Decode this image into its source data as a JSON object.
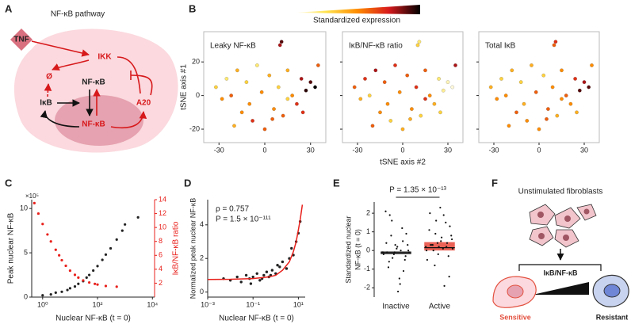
{
  "figure": {
    "panel_labels": [
      "A",
      "B",
      "C",
      "D",
      "E",
      "F"
    ]
  },
  "pathway_diagram": {
    "title": "NF-κB pathway",
    "nodes": [
      {
        "label": "TNF"
      },
      {
        "label": "IKK"
      },
      {
        "label": "Ø"
      },
      {
        "label": "NF-κB"
      },
      {
        "label": "IκB"
      },
      {
        "label": "A20"
      },
      {
        "label": "NF-κB"
      }
    ]
  },
  "chart_data": [
    {
      "type": "tsne",
      "colorbar_label": "Standardized expression",
      "colormap": [
        "#ffffff",
        "#ffe34d",
        "#ff8c00",
        "#d7191c",
        "#000000"
      ],
      "xlabel": "tSNE axis #2",
      "ylabel": "tSNE axis #1",
      "xlim": [
        -40,
        40
      ],
      "ylim": [
        -28,
        38
      ],
      "xticks": [
        -30,
        0,
        30
      ],
      "yticks": [
        -20,
        0,
        20
      ],
      "x": [
        -32,
        -28,
        -25,
        -22,
        -18,
        -15,
        -12,
        -8,
        -5,
        -2,
        0,
        3,
        6,
        9,
        12,
        15,
        18,
        21,
        24,
        27,
        30,
        33,
        -20,
        -10,
        5,
        15,
        25,
        10,
        11,
        35
      ],
      "y": [
        5,
        -2,
        10,
        0,
        15,
        -10,
        8,
        -15,
        18,
        2,
        -20,
        12,
        -8,
        5,
        -12,
        15,
        0,
        -5,
        10,
        3,
        8,
        5,
        -18,
        -5,
        -14,
        -2,
        -10,
        30,
        32,
        18
      ],
      "panels": [
        {
          "title": "Leaky NF-κB",
          "values": [
            0.3,
            0.5,
            0.2,
            0.6,
            0.4,
            0.5,
            0.3,
            0.7,
            0.2,
            0.5,
            0.6,
            0.4,
            0.5,
            0.3,
            0.6,
            0.4,
            0.5,
            0.7,
            0.8,
            0.95,
            0.9,
            1,
            0.4,
            0.5,
            0.6,
            0.3,
            0.7,
            0.8,
            0.9,
            0.6
          ]
        },
        {
          "title": "IκB/NF-κB ratio",
          "values": [
            0.6,
            0.4,
            0.7,
            0.3,
            0.8,
            0.5,
            0.6,
            0.3,
            0.7,
            0.5,
            0.4,
            0.6,
            0.5,
            0.7,
            0.3,
            0.6,
            0.5,
            0.4,
            0.2,
            0.15,
            0.1,
            0.05,
            0.6,
            0.5,
            0.4,
            0.7,
            0.3,
            0.3,
            0.2,
            0.8
          ]
        },
        {
          "title": "Total IκB",
          "values": [
            0.4,
            0.5,
            0.3,
            0.5,
            0.4,
            0.6,
            0.3,
            0.5,
            0.4,
            0.6,
            0.5,
            0.3,
            0.6,
            0.5,
            0.4,
            0.5,
            0.6,
            0.5,
            0.7,
            0.9,
            0.8,
            0.9,
            0.5,
            0.4,
            0.6,
            0.5,
            0.4,
            0.6,
            0.7,
            0.5
          ]
        }
      ]
    },
    {
      "type": "dual_scatter",
      "xlabel": "Nuclear NF-κB (t = 0)",
      "ylabel": "Peak nuclear NF-κB",
      "y_multiplier": "×10⁵",
      "y2label": "IκB/NF-κB ratio",
      "logx": true,
      "xlim": [
        0.4,
        12000
      ],
      "xticks": [
        {
          "value": 1,
          "label": "10⁰"
        },
        {
          "value": 100,
          "label": "10²"
        },
        {
          "value": 10000,
          "label": "10⁴"
        }
      ],
      "ylim": [
        0,
        11
      ],
      "yticks": [
        0,
        5,
        10
      ],
      "y2lim": [
        0,
        14
      ],
      "y2ticks": [
        2,
        4,
        6,
        8,
        10,
        12,
        14
      ],
      "series": [
        {
          "color": "#222222",
          "x": [
            1,
            2,
            3,
            5,
            8,
            10,
            15,
            20,
            30,
            40,
            50,
            70,
            100,
            150,
            200,
            300,
            500,
            800,
            1000,
            3000
          ],
          "values": [
            0.2,
            0.3,
            0.5,
            0.6,
            0.8,
            1.0,
            1.2,
            1.5,
            1.8,
            2.2,
            2.5,
            3.0,
            3.5,
            4.2,
            4.8,
            5.5,
            6.5,
            7.5,
            8.2,
            9
          ]
        },
        {
          "color": "#e8211c",
          "axis": "y2",
          "x": [
            0.5,
            0.7,
            1,
            1.5,
            2,
            3,
            4,
            5,
            7,
            10,
            15,
            20,
            30,
            50,
            80,
            100,
            200,
            500
          ],
          "values": [
            13.5,
            12,
            10.5,
            9,
            8,
            6.8,
            6,
            5.3,
            4.5,
            3.8,
            3.2,
            2.8,
            2.4,
            2.1,
            1.9,
            1.8,
            1.6,
            1.5
          ]
        }
      ]
    },
    {
      "type": "scatter",
      "xlabel": "Nuclear NF-κB (t = 0)",
      "ylabel": "Normalized peak nuclear NF-κB",
      "annotations": [
        "ρ = 0.757",
        "P = 1.5 × 10⁻¹¹¹"
      ],
      "logx": true,
      "xlim": [
        0.001,
        20
      ],
      "xticks": [
        {
          "value": 0.001,
          "label": "10⁻³"
        },
        {
          "value": 0.1,
          "label": "10⁻¹"
        },
        {
          "value": 10,
          "label": "10¹"
        }
      ],
      "ylim": [
        -0.3,
        5.5
      ],
      "yticks": [
        0,
        2,
        4
      ],
      "series": [
        {
          "color": "#222222",
          "mode": "markers",
          "x": [
            0.005,
            0.01,
            0.02,
            0.03,
            0.05,
            0.07,
            0.1,
            0.15,
            0.2,
            0.3,
            0.4,
            0.5,
            0.7,
            1,
            1.5,
            2,
            3,
            4,
            5,
            6,
            8,
            10,
            12,
            0.08,
            0.25,
            0.6,
            1.2
          ],
          "values": [
            0.8,
            0.7,
            0.9,
            0.6,
            1.0,
            0.8,
            0.9,
            1.1,
            0.7,
            1.0,
            1.2,
            0.9,
            1.3,
            1.1,
            1.5,
            1.8,
            1.4,
            2.0,
            2.6,
            2.2,
            3.0,
            3.5,
            4.2,
            0.5,
            0.8,
            1.0,
            1.6
          ]
        },
        {
          "color": "#e8211c",
          "mode": "line",
          "x": [
            0.001,
            0.01,
            0.1,
            0.5,
            1,
            2,
            4,
            6,
            8,
            10,
            12,
            15
          ],
          "values": [
            0.75,
            0.76,
            0.8,
            0.9,
            1.0,
            1.3,
            1.8,
            2.4,
            3.0,
            3.7,
            4.3,
            5.2
          ]
        }
      ]
    },
    {
      "type": "strip_box",
      "ylabel": [
        "Standardized nuclear",
        "NF-κB (t = 0)"
      ],
      "annotation": "P = 1.35 × 10⁻¹³",
      "categories": [
        "Inactive",
        "Active"
      ],
      "colors": [
        "#333333",
        "#e8463a"
      ],
      "ylim": [
        -2.5,
        2.6
      ],
      "yticks": [
        -2,
        -1,
        0,
        1,
        2
      ],
      "points": [
        [
          -0.1,
          0.3,
          -0.5,
          1.2,
          -1.5,
          0.1,
          -0.2,
          0.8,
          -0.9,
          2.1,
          -0.1,
          0.0,
          -0.3,
          0.5,
          -1.8,
          0.2,
          -0.1,
          1.6,
          -0.6,
          0.4,
          -0.2,
          -0.1,
          0.9,
          -1.1,
          0.0,
          -2.2,
          0.3,
          -0.4,
          1.9,
          -0.1
        ],
        [
          0.2,
          0.8,
          -0.3,
          1.5,
          0.1,
          2.3,
          0.4,
          -0.8,
          0.3,
          1.1,
          0.0,
          0.6,
          -1.4,
          0.2,
          1.9,
          0.5,
          -0.2,
          0.9,
          0.3,
          2.0,
          -0.5,
          0.1,
          1.3,
          0.4,
          -1.9,
          0.7,
          0.2,
          1.6,
          0.0,
          0.3
        ]
      ],
      "q1": [
        -0.2,
        0.0
      ],
      "median": [
        -0.12,
        0.15
      ],
      "q3": [
        -0.05,
        0.45
      ]
    }
  ],
  "fibroblast_diagram": {
    "title": "Unstimulated fibroblasts",
    "ratio_label": "IκB/NF-κB",
    "left_label": "Sensitive",
    "right_label": "Resistant"
  }
}
